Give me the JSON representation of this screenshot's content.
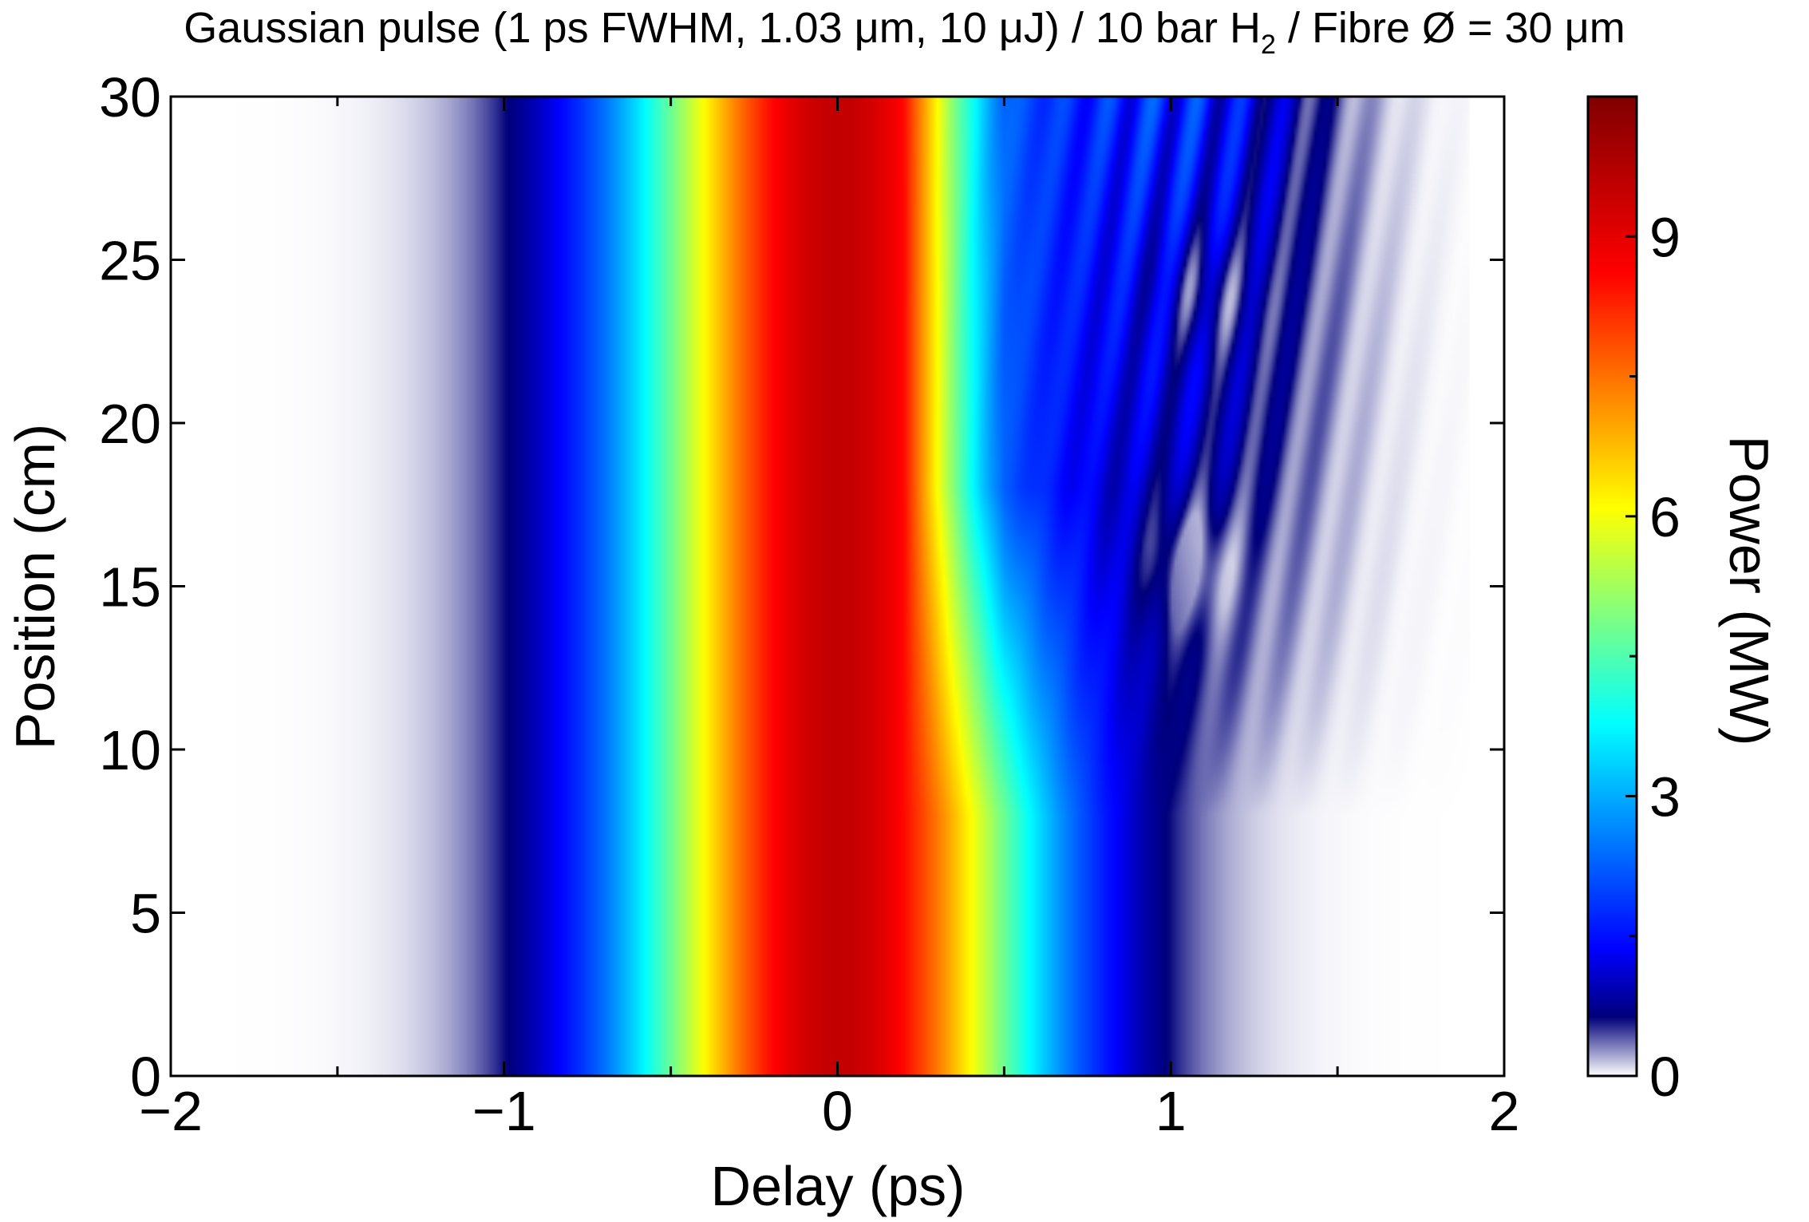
{
  "chart_data": {
    "type": "heatmap",
    "title": {
      "pre": "Gaussian pulse (1 ps FWHM, 1.03 μm, 10 μJ) / 10 bar H",
      "sub": "2",
      "post": "  / Fibre Ø = 30 μm"
    },
    "xlabel": "Delay (ps)",
    "ylabel": "Position (cm)",
    "colorbar_label": "Power (MW)",
    "xlim": [
      -2,
      2
    ],
    "ylim": [
      0,
      30
    ],
    "clim": [
      0,
      10.5
    ],
    "x_ticks": [
      -2,
      -1,
      0,
      1,
      2
    ],
    "x_tick_labels": [
      "−2",
      "−1",
      "0",
      "1",
      "2"
    ],
    "x_minor_ticks": [
      -1.5,
      -0.5,
      0.5,
      1.5
    ],
    "y_ticks": [
      0,
      5,
      10,
      15,
      20,
      25,
      30
    ],
    "y_tick_labels": [
      "0",
      "5",
      "10",
      "15",
      "20",
      "25",
      "30"
    ],
    "colorbar_ticks": [
      0,
      3,
      6,
      9
    ],
    "colorbar_tick_labels": [
      "0",
      "3",
      "6",
      "9"
    ],
    "colorbar_minor_ticks": [
      1.5,
      4.5,
      7.5
    ],
    "colormap": "jet-with-white-low",
    "grid": false,
    "legend": "none",
    "input_pulse": {
      "peak_MW": 9.5,
      "center_ps": 0.0,
      "fwhm_ps": 1.0
    },
    "features": [
      {
        "position_cm": 15.7,
        "delay_ps": 1.05,
        "description_kind": "blue trough"
      },
      {
        "position_cm": 24.0,
        "delay_ps": 1.1,
        "description_kind": "blue trough"
      }
    ]
  }
}
